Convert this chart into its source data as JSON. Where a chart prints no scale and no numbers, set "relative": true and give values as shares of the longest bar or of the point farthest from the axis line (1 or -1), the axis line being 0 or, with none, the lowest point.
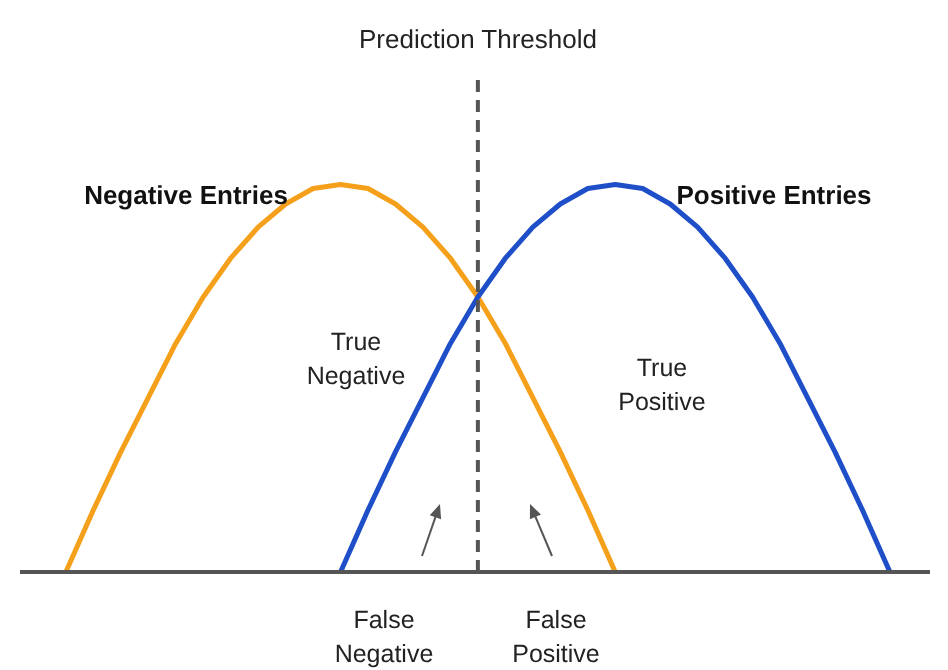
{
  "chart_data": {
    "type": "line",
    "relative": true,
    "categories": [
      null,
      null,
      null,
      null,
      null,
      null,
      null,
      null,
      null,
      null,
      null,
      null,
      null,
      null,
      null,
      null,
      null,
      null,
      null,
      null,
      null,
      null,
      null,
      null,
      null,
      null,
      null,
      null,
      null,
      null,
      null
    ],
    "series": [
      {
        "name": "Negative Entries",
        "color": "#f5a01a",
        "values": [
          0,
          0.16,
          0.31,
          0.45,
          0.59,
          0.71,
          0.81,
          0.89,
          0.95,
          0.99,
          1,
          0.99,
          0.95,
          0.89,
          0.81,
          0.71,
          0.59,
          0.45,
          0.31,
          0.16,
          0,
          null,
          null,
          null,
          null,
          null,
          null,
          null,
          null,
          null,
          null
        ]
      },
      {
        "name": "Positive Entries",
        "color": "#1f4fc8",
        "values": [
          null,
          null,
          null,
          null,
          null,
          null,
          null,
          null,
          null,
          null,
          0,
          0.16,
          0.31,
          0.45,
          0.59,
          0.71,
          0.81,
          0.89,
          0.95,
          0.99,
          1,
          0.99,
          0.95,
          0.89,
          0.81,
          0.71,
          0.59,
          0.45,
          0.31,
          0.16,
          0
        ]
      }
    ],
    "annotations": [
      "Prediction Threshold",
      "True\nNegative",
      "True\nPositive",
      "False\nNegative",
      "False\nPositive"
    ],
    "marker": "none",
    "line_style": "solid"
  }
}
